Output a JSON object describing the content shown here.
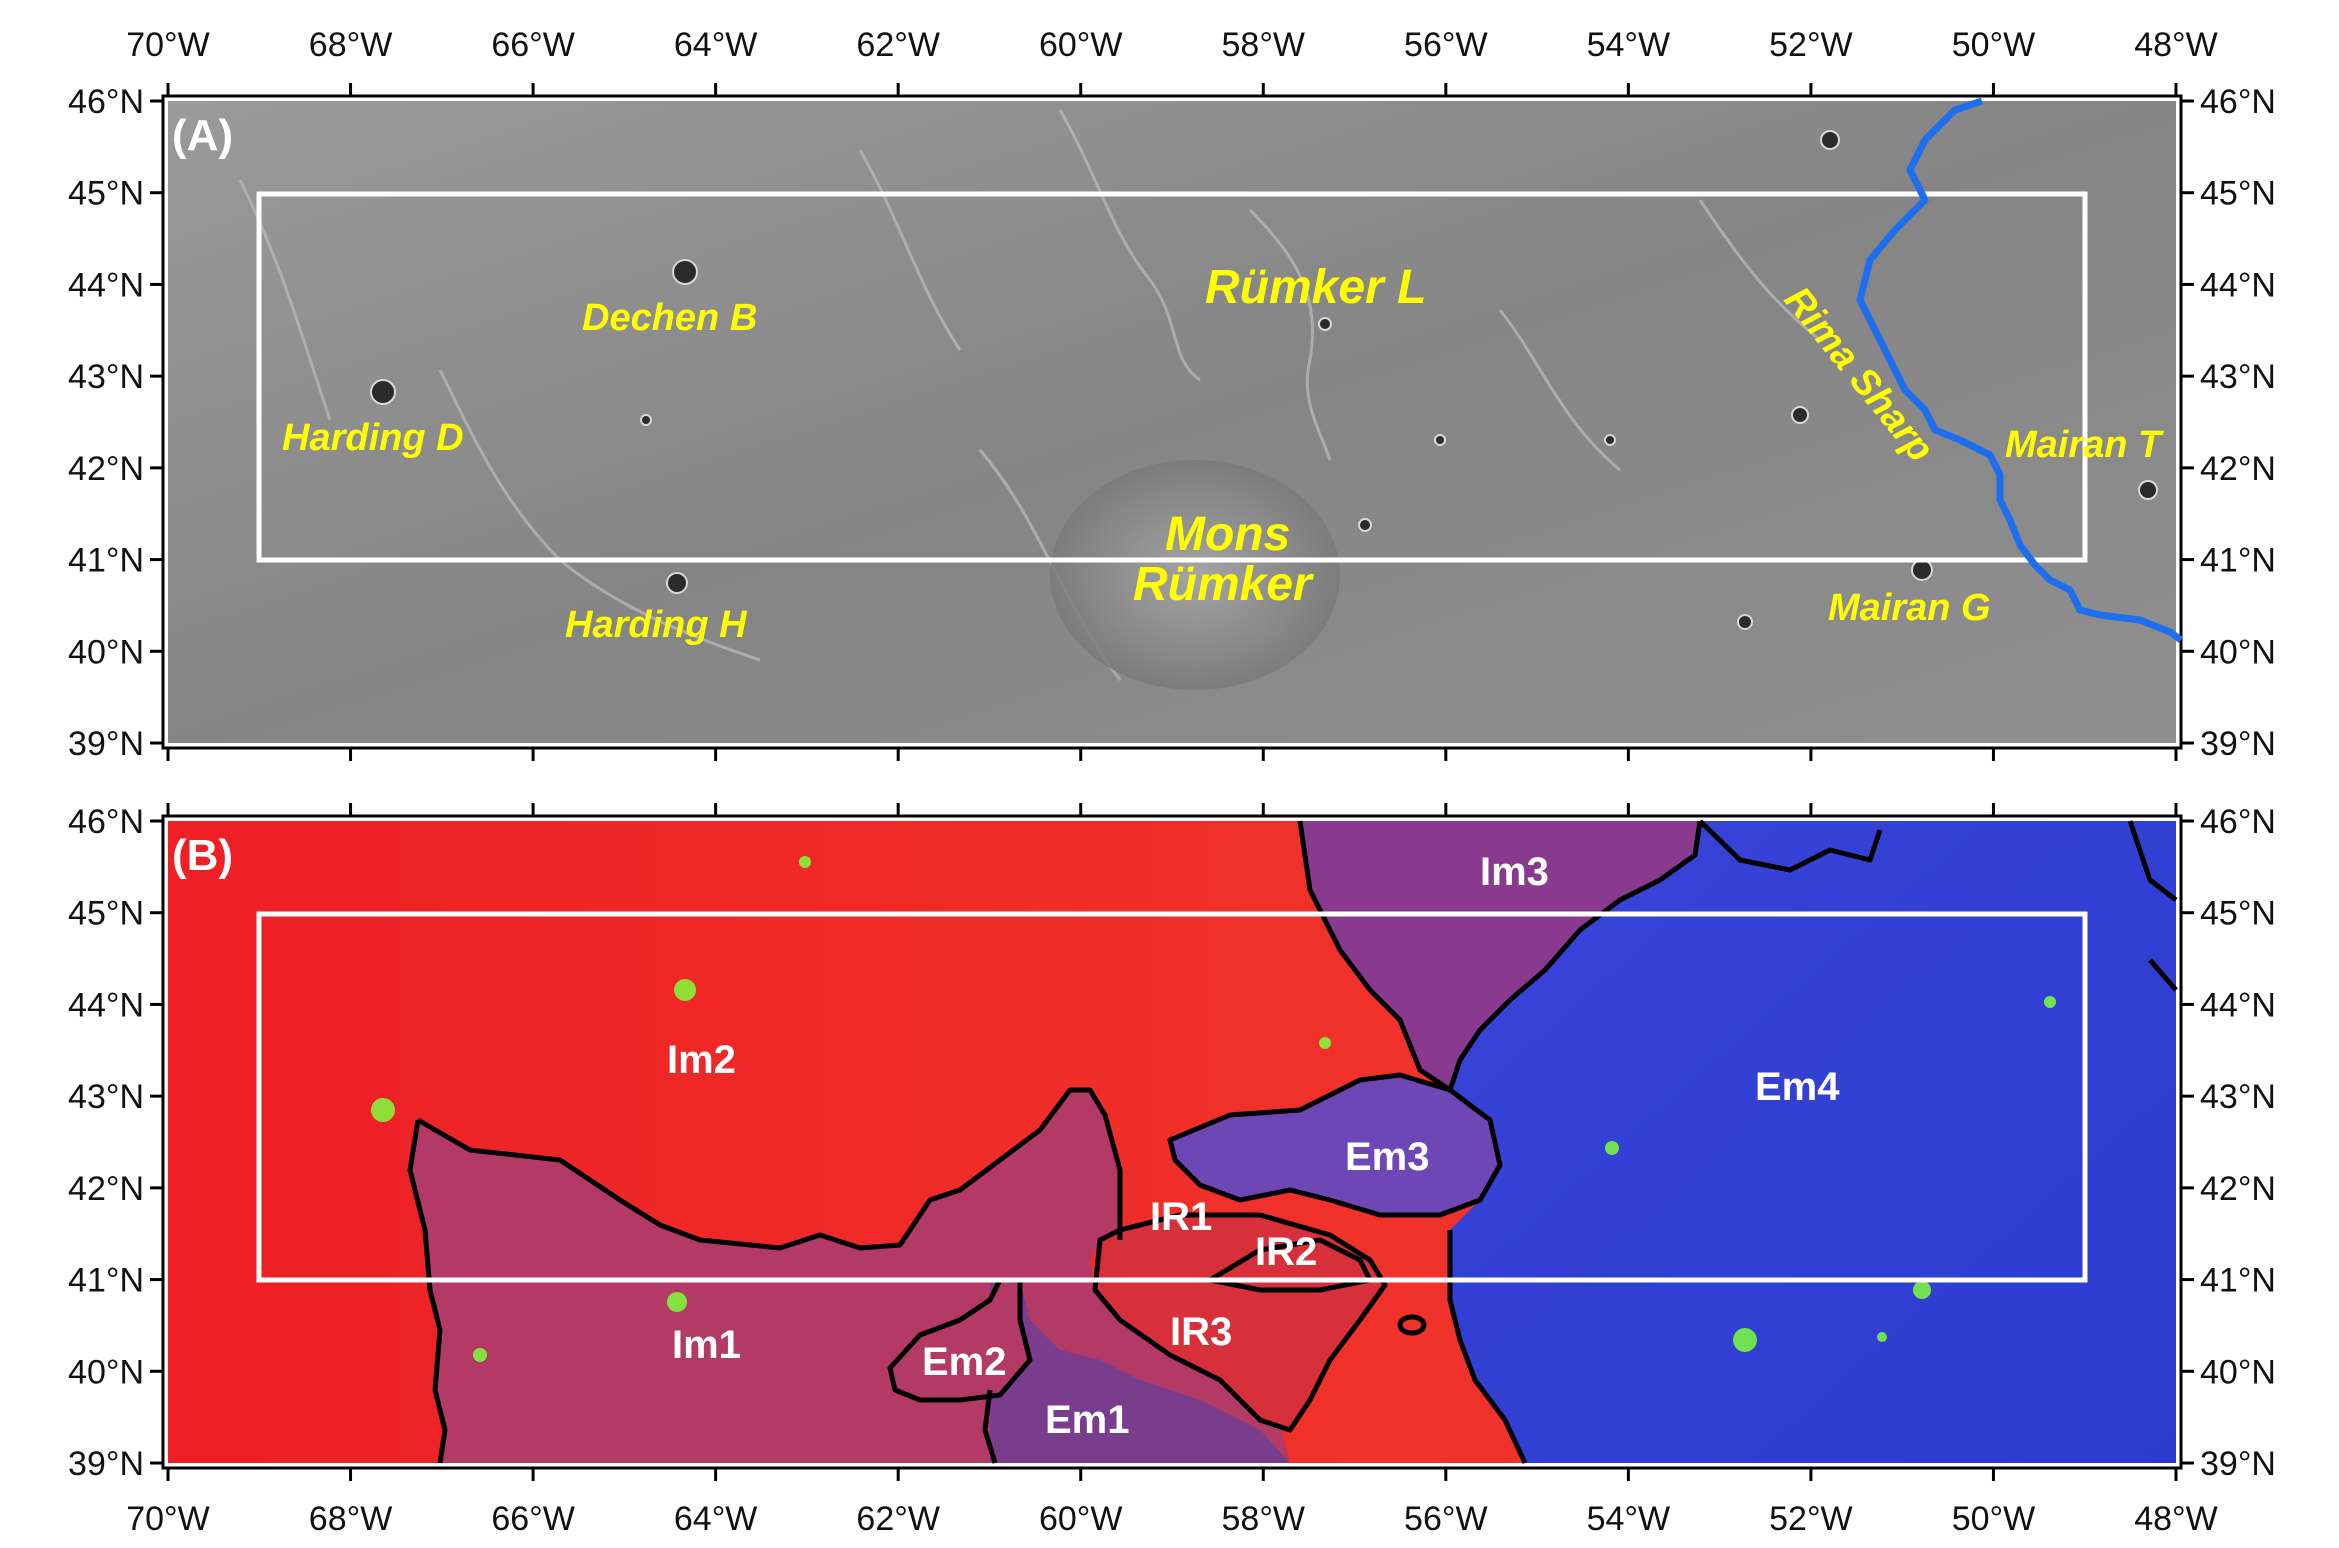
{
  "longitudes": [
    "70°W",
    "68°W",
    "66°W",
    "64°W",
    "62°W",
    "60°W",
    "58°W",
    "56°W",
    "54°W",
    "52°W",
    "50°W",
    "48°W"
  ],
  "latitudes": [
    "46°N",
    "45°N",
    "44°N",
    "43°N",
    "42°N",
    "41°N",
    "40°N",
    "39°N"
  ],
  "colors": {
    "study_box": "#ffffff",
    "rima_sharp_trace": "#1e6ff0",
    "feature_labels": "#ffff00",
    "unit_boundaries": "#000000",
    "unit_labels": "#ffffff",
    "panel_a_surface": "#8a8a8a",
    "panel_b_red_units": "#e8222a",
    "panel_b_blue_units": "#2b3fd0"
  },
  "panel_a": {
    "letter": "(A)",
    "features": [
      {
        "id": "dechen-b",
        "text": "Dechen B"
      },
      {
        "id": "rumker-l",
        "text": "Rümker L"
      },
      {
        "id": "harding-d",
        "text": "Harding D"
      },
      {
        "id": "mons-rumker",
        "text": "Mons"
      },
      {
        "id": "mons-rumker-2",
        "text": "Rümker"
      },
      {
        "id": "harding-h",
        "text": "Harding H"
      },
      {
        "id": "rima-sharp",
        "text": "Rima Sharp"
      },
      {
        "id": "mairan-t",
        "text": "Mairan T"
      },
      {
        "id": "mairan-g",
        "text": "Mairan G"
      }
    ]
  },
  "panel_b": {
    "letter": "(B)",
    "units": [
      {
        "id": "im3",
        "text": "Im3"
      },
      {
        "id": "im2",
        "text": "Im2"
      },
      {
        "id": "em4",
        "text": "Em4"
      },
      {
        "id": "em3",
        "text": "Em3"
      },
      {
        "id": "ir1",
        "text": "IR1"
      },
      {
        "id": "ir2",
        "text": "IR2"
      },
      {
        "id": "im1",
        "text": "Im1"
      },
      {
        "id": "ir3",
        "text": "IR3"
      },
      {
        "id": "em2",
        "text": "Em2"
      },
      {
        "id": "em1",
        "text": "Em1"
      }
    ]
  }
}
